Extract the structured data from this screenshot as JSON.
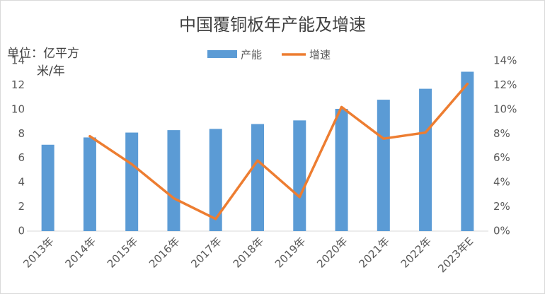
{
  "chart_data": {
    "type": "bar-line",
    "title": "中国覆铜板年产能及增速",
    "y_label": [
      "单位：亿平方",
      "米/年"
    ],
    "categories": [
      "2013年",
      "2014年",
      "2015年",
      "2016年",
      "2017年",
      "2018年",
      "2019年",
      "2020年",
      "2021年",
      "2022年",
      "2023年E"
    ],
    "series": [
      {
        "name": "产能",
        "type": "bar",
        "color": "#5b9bd5",
        "values": [
          7.1,
          7.7,
          8.1,
          8.3,
          8.4,
          8.8,
          9.1,
          10.05,
          10.8,
          11.7,
          13.1
        ]
      },
      {
        "name": "增速",
        "type": "line",
        "axis": "y2",
        "color": "#ed7d31",
        "values": [
          null,
          7.8,
          5.5,
          2.7,
          1.0,
          5.8,
          2.8,
          10.2,
          7.6,
          8.1,
          12.1
        ]
      }
    ],
    "ylim": [
      0,
      14
    ],
    "yticks": [
      0,
      2,
      4,
      6,
      8,
      10,
      12,
      14
    ],
    "y2lim": [
      0,
      14
    ],
    "y2ticks": [
      {
        "value": 0,
        "label": "0%"
      },
      {
        "value": 2,
        "label": "2%"
      },
      {
        "value": 4,
        "label": "4%"
      },
      {
        "value": 6,
        "label": "6%"
      },
      {
        "value": 8,
        "label": "8%"
      },
      {
        "value": 10,
        "label": "10%"
      },
      {
        "value": 12,
        "label": "12%"
      },
      {
        "value": 14,
        "label": "14%"
      }
    ],
    "legend": "top"
  }
}
